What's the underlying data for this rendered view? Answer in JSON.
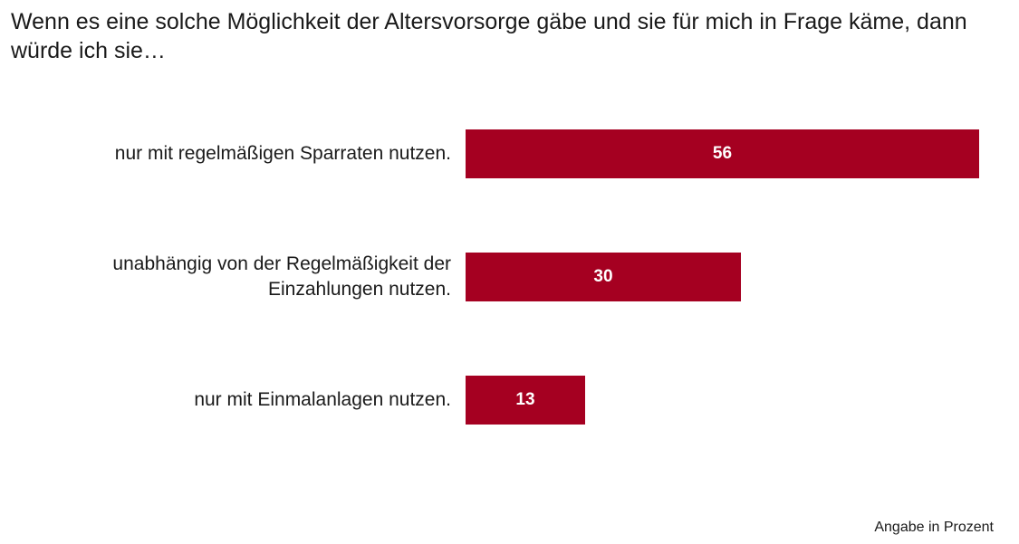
{
  "chart_data": {
    "type": "bar",
    "orientation": "horizontal",
    "title": "Wenn es eine solche Möglichkeit der Altersvorsorge gäbe und sie für mich in Frage käme, dann würde ich sie…",
    "categories": [
      "nur mit regelmäßigen Sparraten nutzen.",
      "unabhängig von der Regelmäßigkeit der Einzahlungen nutzen.",
      "nur mit Einmalanlagen nutzen."
    ],
    "values": [
      56,
      30,
      13
    ],
    "data_labels": [
      "56",
      "30",
      "13"
    ],
    "unit_note": "Angabe in Prozent",
    "bar_color": "#a50021",
    "grid": false,
    "legend": "none"
  }
}
